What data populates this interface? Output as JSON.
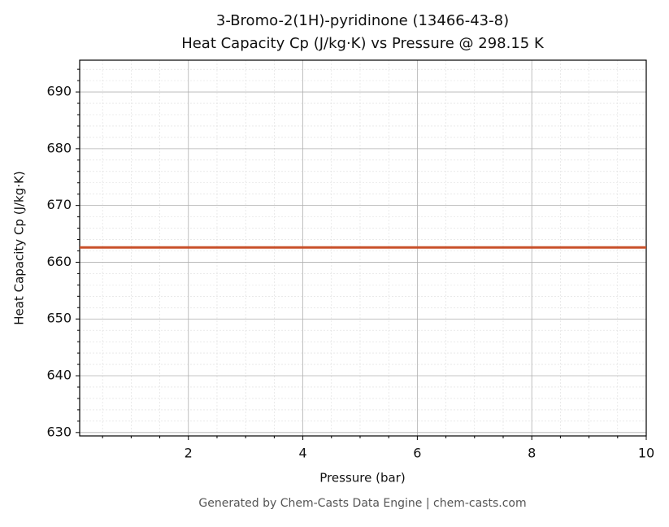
{
  "chart_data": {
    "type": "line",
    "title": "3-Bromo-2(1H)-pyridinone (13466-43-8)",
    "subtitle": "Heat Capacity Cp (J/kg·K) vs Pressure @ 298.15 K",
    "x_label": "Pressure (bar)",
    "y_label": "Heat Capacity Cp (J/kg·K)",
    "footer": "Generated by Chem-Casts Data Engine | chem-casts.com",
    "x": [
      0.1,
      1,
      2,
      3,
      4,
      5,
      6,
      7,
      8,
      9,
      10
    ],
    "series": [
      {
        "name": "Cp",
        "color": "#c8502a",
        "values": [
          662.6,
          662.6,
          662.6,
          662.6,
          662.6,
          662.6,
          662.6,
          662.6,
          662.6,
          662.6,
          662.6
        ]
      }
    ],
    "xlim": [
      0.1,
      10
    ],
    "ylim": [
      629.4,
      695.6
    ],
    "xticks": [
      2,
      4,
      6,
      8,
      10
    ],
    "yticks": [
      630,
      640,
      650,
      660,
      670,
      680,
      690
    ],
    "xminorticks": [
      0.5,
      1,
      1.5,
      2.5,
      3,
      3.5,
      4.5,
      5,
      5.5,
      6.5,
      7,
      7.5,
      8.5,
      9,
      9.5
    ],
    "yminorticks": [
      632,
      634,
      636,
      638,
      642,
      644,
      646,
      648,
      652,
      654,
      656,
      658,
      662,
      664,
      666,
      668,
      672,
      674,
      676,
      678,
      682,
      684,
      686,
      688,
      692,
      694
    ],
    "grid": true,
    "minor_grid": true
  }
}
